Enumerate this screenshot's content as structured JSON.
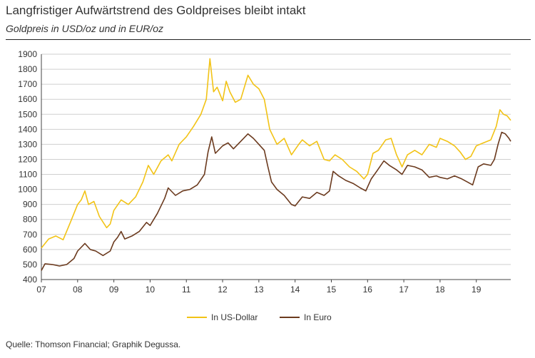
{
  "header": {
    "title": "Langfristiger Aufwärtstrend des Goldpreises bleibt intakt",
    "subtitle": "Goldpreis in USD/oz und in EUR/oz"
  },
  "footer": {
    "source": "Quelle: Thomson Financial; Graphik Degussa."
  },
  "chart_data": {
    "type": "line",
    "title": "",
    "xlabel": "",
    "ylabel": "",
    "x_ticks": [
      "07",
      "08",
      "09",
      "10",
      "11",
      "12",
      "13",
      "14",
      "15",
      "16",
      "17",
      "18",
      "19"
    ],
    "y_ticks": [
      400,
      500,
      600,
      700,
      800,
      900,
      1000,
      1100,
      1200,
      1300,
      1400,
      1500,
      1600,
      1700,
      1800,
      1900
    ],
    "ylim": [
      400,
      1900
    ],
    "xlim": [
      2007.0,
      2019.95
    ],
    "grid": "horizontal",
    "legend_position": "bottom-center",
    "series": [
      {
        "name": "In US-Dollar",
        "color": "#f2c316",
        "points": [
          [
            2007.0,
            610
          ],
          [
            2007.2,
            670
          ],
          [
            2007.4,
            690
          ],
          [
            2007.6,
            665
          ],
          [
            2007.8,
            780
          ],
          [
            2008.0,
            900
          ],
          [
            2008.1,
            930
          ],
          [
            2008.2,
            990
          ],
          [
            2008.3,
            900
          ],
          [
            2008.45,
            920
          ],
          [
            2008.6,
            820
          ],
          [
            2008.8,
            745
          ],
          [
            2008.9,
            770
          ],
          [
            2009.0,
            860
          ],
          [
            2009.2,
            930
          ],
          [
            2009.4,
            900
          ],
          [
            2009.6,
            950
          ],
          [
            2009.8,
            1050
          ],
          [
            2009.95,
            1160
          ],
          [
            2010.1,
            1100
          ],
          [
            2010.3,
            1190
          ],
          [
            2010.5,
            1230
          ],
          [
            2010.6,
            1190
          ],
          [
            2010.8,
            1300
          ],
          [
            2011.0,
            1350
          ],
          [
            2011.2,
            1420
          ],
          [
            2011.4,
            1500
          ],
          [
            2011.55,
            1600
          ],
          [
            2011.65,
            1870
          ],
          [
            2011.75,
            1650
          ],
          [
            2011.85,
            1680
          ],
          [
            2012.0,
            1590
          ],
          [
            2012.1,
            1720
          ],
          [
            2012.2,
            1650
          ],
          [
            2012.35,
            1580
          ],
          [
            2012.5,
            1600
          ],
          [
            2012.7,
            1760
          ],
          [
            2012.85,
            1700
          ],
          [
            2013.0,
            1670
          ],
          [
            2013.15,
            1600
          ],
          [
            2013.3,
            1400
          ],
          [
            2013.5,
            1300
          ],
          [
            2013.7,
            1340
          ],
          [
            2013.9,
            1230
          ],
          [
            2014.1,
            1300
          ],
          [
            2014.2,
            1330
          ],
          [
            2014.4,
            1290
          ],
          [
            2014.6,
            1320
          ],
          [
            2014.8,
            1200
          ],
          [
            2014.95,
            1190
          ],
          [
            2015.1,
            1230
          ],
          [
            2015.3,
            1200
          ],
          [
            2015.5,
            1150
          ],
          [
            2015.7,
            1120
          ],
          [
            2015.9,
            1070
          ],
          [
            2016.0,
            1100
          ],
          [
            2016.15,
            1240
          ],
          [
            2016.3,
            1260
          ],
          [
            2016.5,
            1330
          ],
          [
            2016.65,
            1340
          ],
          [
            2016.8,
            1230
          ],
          [
            2016.95,
            1150
          ],
          [
            2017.1,
            1230
          ],
          [
            2017.3,
            1260
          ],
          [
            2017.5,
            1230
          ],
          [
            2017.7,
            1300
          ],
          [
            2017.9,
            1280
          ],
          [
            2018.0,
            1340
          ],
          [
            2018.2,
            1320
          ],
          [
            2018.4,
            1290
          ],
          [
            2018.55,
            1250
          ],
          [
            2018.7,
            1200
          ],
          [
            2018.85,
            1220
          ],
          [
            2019.0,
            1290
          ],
          [
            2019.2,
            1310
          ],
          [
            2019.4,
            1330
          ],
          [
            2019.55,
            1420
          ],
          [
            2019.65,
            1530
          ],
          [
            2019.75,
            1500
          ],
          [
            2019.85,
            1490
          ],
          [
            2019.95,
            1460
          ]
        ]
      },
      {
        "name": "In Euro",
        "color": "#6b3a1e",
        "points": [
          [
            2007.0,
            460
          ],
          [
            2007.1,
            505
          ],
          [
            2007.3,
            500
          ],
          [
            2007.5,
            490
          ],
          [
            2007.7,
            500
          ],
          [
            2007.9,
            540
          ],
          [
            2008.0,
            590
          ],
          [
            2008.2,
            640
          ],
          [
            2008.35,
            600
          ],
          [
            2008.5,
            590
          ],
          [
            2008.7,
            560
          ],
          [
            2008.9,
            590
          ],
          [
            2009.0,
            650
          ],
          [
            2009.1,
            680
          ],
          [
            2009.2,
            720
          ],
          [
            2009.3,
            670
          ],
          [
            2009.5,
            690
          ],
          [
            2009.7,
            720
          ],
          [
            2009.9,
            780
          ],
          [
            2010.0,
            760
          ],
          [
            2010.2,
            840
          ],
          [
            2010.4,
            940
          ],
          [
            2010.5,
            1010
          ],
          [
            2010.7,
            960
          ],
          [
            2010.9,
            990
          ],
          [
            2011.1,
            1000
          ],
          [
            2011.3,
            1030
          ],
          [
            2011.5,
            1100
          ],
          [
            2011.6,
            1250
          ],
          [
            2011.7,
            1350
          ],
          [
            2011.8,
            1240
          ],
          [
            2012.0,
            1290
          ],
          [
            2012.15,
            1310
          ],
          [
            2012.3,
            1270
          ],
          [
            2012.5,
            1320
          ],
          [
            2012.7,
            1370
          ],
          [
            2012.85,
            1340
          ],
          [
            2013.0,
            1300
          ],
          [
            2013.15,
            1260
          ],
          [
            2013.25,
            1150
          ],
          [
            2013.35,
            1050
          ],
          [
            2013.5,
            1000
          ],
          [
            2013.7,
            960
          ],
          [
            2013.9,
            900
          ],
          [
            2014.0,
            890
          ],
          [
            2014.2,
            950
          ],
          [
            2014.4,
            940
          ],
          [
            2014.6,
            980
          ],
          [
            2014.8,
            960
          ],
          [
            2014.95,
            990
          ],
          [
            2015.05,
            1120
          ],
          [
            2015.2,
            1090
          ],
          [
            2015.4,
            1060
          ],
          [
            2015.6,
            1040
          ],
          [
            2015.8,
            1010
          ],
          [
            2015.95,
            990
          ],
          [
            2016.1,
            1070
          ],
          [
            2016.25,
            1120
          ],
          [
            2016.45,
            1190
          ],
          [
            2016.6,
            1160
          ],
          [
            2016.8,
            1130
          ],
          [
            2016.95,
            1100
          ],
          [
            2017.1,
            1160
          ],
          [
            2017.3,
            1150
          ],
          [
            2017.5,
            1130
          ],
          [
            2017.7,
            1080
          ],
          [
            2017.9,
            1090
          ],
          [
            2018.0,
            1080
          ],
          [
            2018.2,
            1070
          ],
          [
            2018.4,
            1090
          ],
          [
            2018.6,
            1070
          ],
          [
            2018.75,
            1050
          ],
          [
            2018.9,
            1030
          ],
          [
            2019.05,
            1150
          ],
          [
            2019.2,
            1170
          ],
          [
            2019.4,
            1160
          ],
          [
            2019.5,
            1200
          ],
          [
            2019.6,
            1300
          ],
          [
            2019.7,
            1380
          ],
          [
            2019.8,
            1370
          ],
          [
            2019.9,
            1340
          ],
          [
            2019.95,
            1320
          ]
        ]
      }
    ]
  }
}
